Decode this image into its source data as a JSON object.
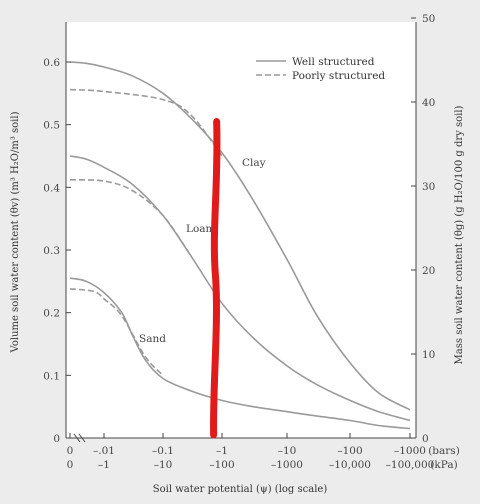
{
  "chart_data": {
    "type": "line",
    "title": "",
    "xlabel": "Soil water potential (ψ) (log scale)",
    "ylabel_left": "Volume soil water content (θv) (m³ H₂O/m³ soil)",
    "ylabel_right": "Mass soil water content (θg) (g H₂O/100 g dry soil)",
    "x_unit_top": "(bars)",
    "x_unit_bottom": "(kPa)",
    "x_ticks_bars": [
      "0",
      "–.01",
      "–0.1",
      "–1",
      "–10",
      "–100",
      "–1000"
    ],
    "x_ticks_kpa": [
      "0",
      "–1",
      "–10",
      "–100",
      "–1000",
      "–10,000",
      "–100,000"
    ],
    "x_tick_values": [
      -0.001,
      -0.01,
      -0.1,
      -1,
      -10,
      -100,
      -1000
    ],
    "y_left_ticks": [
      "0",
      "0.1",
      "0.2",
      "0.3",
      "0.4",
      "0.5",
      "0.6"
    ],
    "y_left_values": [
      0,
      0.1,
      0.2,
      0.3,
      0.4,
      0.5,
      0.6
    ],
    "y_right_ticks": [
      "0",
      "10",
      "20",
      "30",
      "40",
      "50"
    ],
    "y_right_values": [
      0,
      10,
      20,
      30,
      40,
      50
    ],
    "ylim": [
      0,
      0.65
    ],
    "xlim_bars": [
      -0.001,
      -1000
    ],
    "legend": [
      {
        "label": "Well structured",
        "style": "solid"
      },
      {
        "label": "Poorly structured",
        "style": "dashed"
      }
    ],
    "legend_position": "top-right",
    "curve_labels": [
      "Clay",
      "Loam",
      "Sand"
    ],
    "series": [
      {
        "name": "Clay",
        "structure": "Well structured",
        "x": [
          -0.001,
          -0.003,
          -0.01,
          -0.03,
          -0.1,
          -0.3,
          -1,
          -3,
          -10,
          -30,
          -100,
          -300,
          -1000
        ],
        "y": [
          0.6,
          0.598,
          0.592,
          0.578,
          0.55,
          0.51,
          0.455,
          0.38,
          0.285,
          0.195,
          0.12,
          0.072,
          0.045
        ]
      },
      {
        "name": "Clay",
        "structure": "Poorly structured",
        "x": [
          -0.001,
          -0.01,
          -0.1,
          -0.3,
          -1
        ],
        "y": [
          0.556,
          0.553,
          0.54,
          0.515,
          0.45
        ]
      },
      {
        "name": "Loam",
        "structure": "Well structured",
        "x": [
          -0.001,
          -0.003,
          -0.01,
          -0.03,
          -0.1,
          -0.3,
          -1,
          -3,
          -10,
          -30,
          -100,
          -300,
          -1000
        ],
        "y": [
          0.45,
          0.445,
          0.432,
          0.405,
          0.355,
          0.29,
          0.215,
          0.16,
          0.115,
          0.085,
          0.06,
          0.042,
          0.028
        ]
      },
      {
        "name": "Loam",
        "structure": "Poorly structured",
        "x": [
          -0.001,
          -0.01,
          -0.03,
          -0.1,
          -0.3
        ],
        "y": [
          0.412,
          0.41,
          0.395,
          0.355,
          0.29
        ]
      },
      {
        "name": "Sand",
        "structure": "Well structured",
        "x": [
          -0.001,
          -0.003,
          -0.01,
          -0.02,
          -0.03,
          -0.05,
          -0.1,
          -0.3,
          -1,
          -3,
          -10,
          -30,
          -100,
          -300,
          -1000
        ],
        "y": [
          0.255,
          0.25,
          0.232,
          0.2,
          0.165,
          0.125,
          0.095,
          0.075,
          0.06,
          0.05,
          0.042,
          0.035,
          0.028,
          0.02,
          0.015
        ]
      },
      {
        "name": "Sand",
        "structure": "Poorly structured",
        "x": [
          -0.001,
          -0.005,
          -0.01,
          -0.02,
          -0.05,
          -0.1
        ],
        "y": [
          0.238,
          0.234,
          0.222,
          0.195,
          0.13,
          0.1
        ]
      }
    ],
    "annotations": [
      {
        "type": "hand-drawn vertical line",
        "color": "#e11a1a",
        "x_bars": -0.75,
        "y_from": 0.005,
        "y_to": 0.505
      }
    ]
  }
}
